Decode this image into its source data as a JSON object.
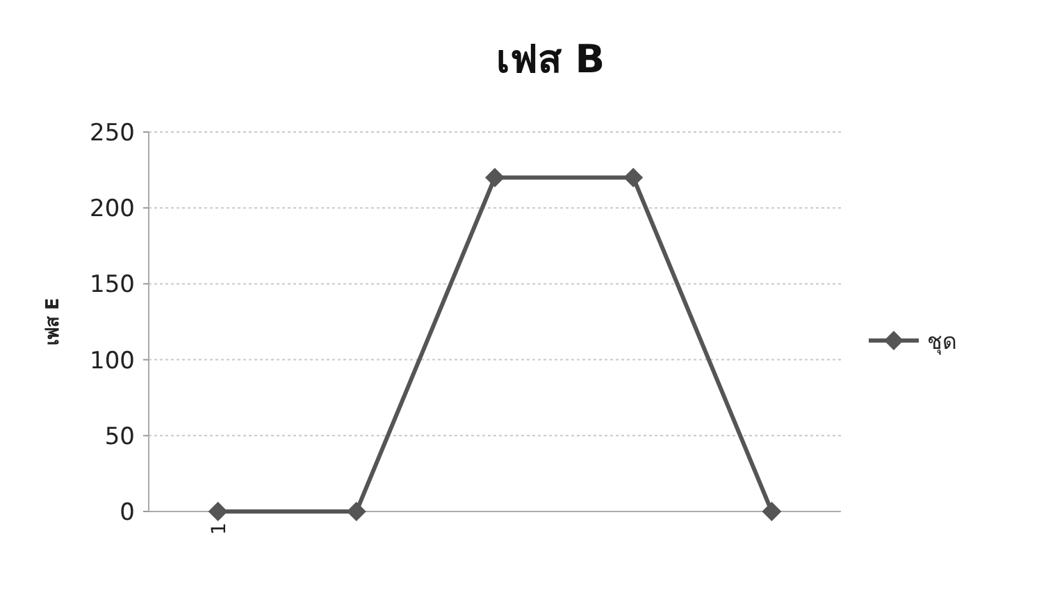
{
  "chart_data": {
    "type": "line",
    "title": "เฟส B",
    "ylabel": "เฟส E",
    "categories": [
      "1",
      null,
      null,
      null,
      null
    ],
    "series": [
      {
        "name": "ชุด",
        "color": "#555555",
        "values": [
          0,
          0,
          220,
          220,
          0
        ]
      }
    ],
    "ylim": [
      0,
      250
    ],
    "yticks": [
      0,
      50,
      100,
      150,
      200,
      250
    ],
    "grid": "y",
    "legend": "right",
    "marker": "diamond",
    "line_style": "solid"
  }
}
